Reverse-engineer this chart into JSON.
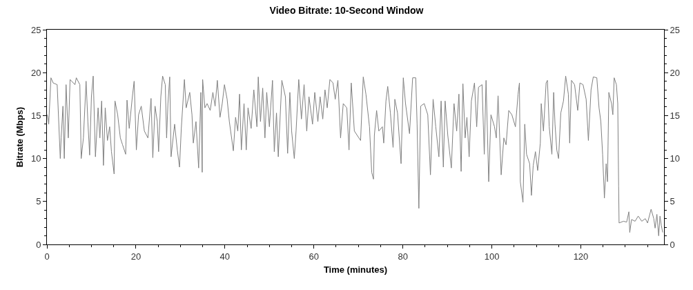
{
  "chart_data": {
    "type": "line",
    "title": "Video Bitrate: 10-Second Window",
    "xlabel": "Time (minutes)",
    "ylabel": "Bitrate (Mbps)",
    "xlim": [
      0,
      138.7
    ],
    "xticks": [
      0,
      20,
      40,
      60,
      80,
      100,
      120
    ],
    "ylim": [
      0,
      25
    ],
    "yticks": [
      0,
      5,
      10,
      15,
      20,
      25
    ],
    "y2lim": [
      0,
      25
    ],
    "y2ticks": [
      0,
      5,
      10,
      15,
      20,
      25
    ],
    "grid": false,
    "marker": "none",
    "line_style": "solid",
    "series": [
      {
        "color": "#808080",
        "x": [
          0.1,
          0.4,
          0.9,
          1.4,
          2.3,
          3.0,
          3.2,
          3.6,
          3.9,
          4.3,
          4.8,
          5.2,
          6.3,
          6.6,
          7.4,
          7.7,
          8.2,
          8.8,
          9.2,
          9.6,
          10.0,
          10.4,
          10.9,
          11.5,
          11.9,
          12.3,
          12.7,
          13.1,
          13.6,
          14.1,
          14.5,
          15.1,
          15.3,
          15.9,
          16.5,
          17.0,
          17.7,
          18.0,
          18.5,
          19.2,
          19.6,
          20.1,
          20.6,
          21.2,
          21.9,
          22.7,
          23.4,
          23.8,
          24.3,
          24.8,
          25.1,
          25.6,
          26.0,
          26.6,
          26.9,
          27.2,
          27.6,
          27.9,
          28.7,
          29.3,
          29.8,
          30.2,
          30.9,
          31.3,
          32.1,
          32.6,
          32.9,
          33.5,
          34.1,
          34.6,
          34.9,
          35.0,
          35.5,
          36.0,
          36.7,
          37.3,
          37.8,
          38.3,
          38.9,
          39.4,
          39.9,
          40.5,
          41.0,
          41.9,
          42.4,
          42.9,
          43.3,
          43.7,
          44.3,
          44.8,
          45.2,
          45.9,
          46.5,
          47.2,
          47.5,
          48.0,
          48.5,
          49.0,
          49.4,
          50.0,
          50.7,
          51.1,
          51.6,
          52.0,
          52.8,
          53.6,
          54.1,
          54.6,
          55.0,
          55.6,
          56.0,
          56.6,
          57.2,
          57.8,
          58.4,
          58.9,
          59.7,
          60.2,
          60.9,
          61.4,
          62.0,
          62.5,
          63.0,
          63.6,
          64.3,
          64.8,
          65.4,
          66.0,
          66.6,
          67.4,
          67.9,
          68.4,
          69.1,
          70.5,
          71.1,
          71.7,
          72.5,
          73.0,
          73.4,
          73.6,
          74.1,
          74.6,
          75.4,
          75.7,
          76.2,
          76.6,
          77.2,
          77.8,
          78.2,
          78.8,
          79.6,
          80.1,
          80.6,
          81.5,
          82.2,
          82.9,
          83.2,
          83.6,
          84.0,
          84.8,
          85.6,
          86.2,
          86.8,
          87.4,
          88.1,
          88.6,
          89.1,
          89.5,
          90.1,
          90.9,
          91.5,
          92.1,
          92.6,
          93.1,
          93.5,
          94.0,
          94.4,
          94.9,
          95.4,
          96.1,
          96.6,
          97.0,
          97.8,
          98.3,
          98.7,
          99.3,
          99.8,
          100.6,
          101.0,
          101.4,
          102.1,
          102.7,
          103.2,
          103.8,
          104.5,
          105.3,
          105.9,
          106.2,
          106.4,
          107.0,
          107.4,
          107.8,
          108.5,
          108.9,
          109.3,
          109.8,
          110.3,
          110.9,
          111.1,
          111.6,
          112.2,
          112.5,
          112.9,
          113.5,
          113.9,
          114.2,
          114.6,
          115.0,
          115.5,
          116.1,
          116.6,
          117.2,
          117.5,
          117.9,
          118.6,
          119.3,
          119.8,
          120.5,
          121.2,
          121.7,
          122.3,
          122.8,
          123.6,
          124.1,
          124.5,
          124.9,
          125.3,
          125.7,
          126.0,
          126.3,
          126.9,
          127.2,
          127.5,
          128.0,
          128.3,
          128.5,
          128.6,
          129.6,
          130.3,
          130.8,
          131.0,
          131.4,
          132.2,
          132.9,
          133.7,
          134.5,
          135.0,
          135.8,
          136.4,
          136.7,
          137.1,
          137.5,
          137.8,
          138.1,
          138.4
        ],
        "values": [
          15.1,
          14,
          19.4,
          18.8,
          18.6,
          10,
          12.4,
          16.1,
          10,
          18.6,
          12.4,
          19.2,
          18.6,
          19.4,
          18.6,
          10,
          12.4,
          19,
          14.3,
          10.4,
          17.2,
          19.6,
          10.2,
          15.9,
          12.4,
          16.7,
          9.2,
          15.9,
          12.1,
          13.7,
          10.8,
          8.2,
          16.7,
          15.1,
          12.4,
          11.6,
          10.5,
          16.8,
          13.5,
          17.2,
          19,
          11,
          15.1,
          16.1,
          13.2,
          12.4,
          17,
          10.1,
          16.1,
          14.3,
          10.8,
          17.2,
          19.6,
          18.6,
          12.4,
          16.4,
          19.5,
          10.2,
          14,
          11,
          9,
          13.5,
          19.2,
          15.9,
          17.7,
          15.1,
          11.8,
          14.3,
          8.9,
          17.7,
          8.4,
          19.2,
          15.9,
          16.4,
          15.6,
          17.7,
          16.1,
          19.1,
          14.8,
          16.4,
          18.6,
          16.9,
          14.3,
          10.9,
          14.8,
          13.2,
          17.5,
          11,
          16.4,
          11,
          15.9,
          13.5,
          18,
          13.7,
          19.5,
          14.3,
          18.2,
          12.4,
          17.7,
          13.7,
          19.1,
          10.8,
          15.3,
          10.2,
          19.1,
          17.2,
          10.6,
          17.7,
          13.2,
          10,
          13.2,
          19.2,
          14.6,
          18.6,
          13.2,
          17.2,
          14,
          17.7,
          14.3,
          17.2,
          14.6,
          18,
          15.9,
          19.2,
          18.8,
          16.9,
          19.1,
          12.4,
          16.4,
          15.9,
          11,
          18.8,
          13.2,
          12.1,
          19.5,
          17.5,
          13.7,
          8.4,
          7.6,
          12.7,
          15.6,
          13.2,
          13.7,
          11.8,
          16.7,
          18.4,
          15.3,
          11.3,
          16.9,
          15.3,
          9.4,
          19.4,
          16.4,
          12.9,
          19.4,
          19.4,
          14,
          4.2,
          16.1,
          16.4,
          15.1,
          8.1,
          16.9,
          13.7,
          10.2,
          16.7,
          9,
          16.7,
          12.7,
          8.9,
          16.4,
          13.2,
          17.5,
          8.5,
          18.7,
          12.4,
          14.8,
          10.2,
          16.7,
          18.8,
          13.7,
          18.3,
          18.6,
          10.5,
          19.1,
          7.3,
          15.1,
          13.7,
          12.4,
          17.3,
          8.1,
          12.4,
          11.6,
          15.6,
          15.1,
          13.7,
          17.5,
          18.8,
          7.3,
          4.9,
          14,
          10.5,
          9.4,
          5.7,
          9.2,
          10.8,
          8.6,
          11.8,
          16.4,
          13.2,
          18.8,
          19.1,
          13.7,
          10.5,
          17.7,
          14,
          11,
          10,
          15.3,
          16.7,
          19.6,
          17.5,
          11.8,
          19.1,
          18.6,
          15.6,
          18.8,
          18.6,
          16.9,
          12.1,
          18,
          19.5,
          19.4,
          15.9,
          14.3,
          10.5,
          5.4,
          9.4,
          7.3,
          17.7,
          16.4,
          15.1,
          19.4,
          18.6,
          16.4,
          6.8,
          2.5,
          2.7,
          2.6,
          3.8,
          1.4,
          2.9,
          2.7,
          3.3,
          2.7,
          3,
          2.5,
          4.1,
          3,
          1.9,
          3.5,
          1,
          3.3,
          2.2,
          1.4
        ]
      }
    ]
  }
}
